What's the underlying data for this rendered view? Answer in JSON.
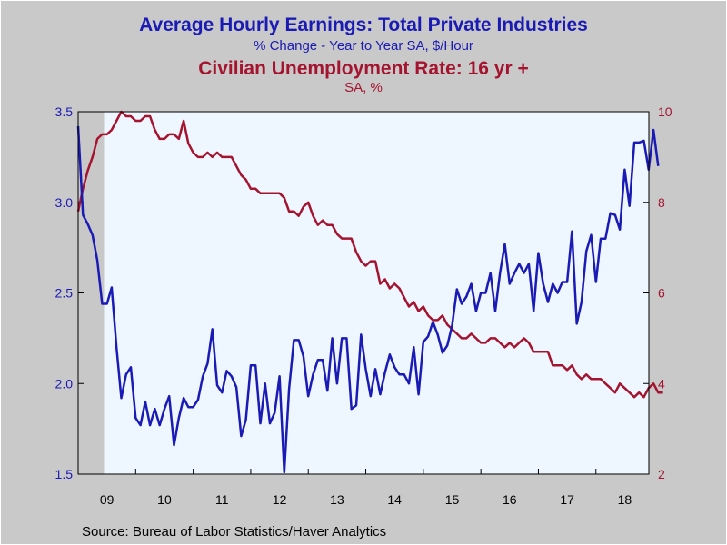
{
  "chart_data": {
    "type": "line",
    "title": "Average Hourly Earnings: Total Private Industries",
    "subtitle": "% Change - Year to Year     SA, $/Hour",
    "title2": "Civilian Unemployment Rate: 16 yr +",
    "subtitle2": "SA, %",
    "source": "Source:  Bureau of Labor Statistics/Haver Analytics",
    "x_tick_labels": [
      "09",
      "10",
      "11",
      "12",
      "13",
      "14",
      "15",
      "16",
      "17",
      "18"
    ],
    "x_range": [
      2009.0,
      2018.92
    ],
    "left_axis": {
      "ylim": [
        1.5,
        3.5
      ],
      "ticks": [
        "1.5",
        "2.0",
        "2.5",
        "3.0",
        "3.5"
      ]
    },
    "right_axis": {
      "ylim": [
        2,
        10
      ],
      "ticks": [
        "2",
        "4",
        "6",
        "8",
        "10"
      ]
    },
    "recession_shading": [
      2009.0,
      2009.45
    ],
    "colors": {
      "earnings": "#1a1ab4",
      "unemployment": "#a5142f",
      "plot_bg": "#eef6ff",
      "recession": "#c8c8c8"
    },
    "series": [
      {
        "axis": "left",
        "x_start": 2009.0,
        "step": 0.083333,
        "values": [
          3.42,
          2.93,
          2.88,
          2.82,
          2.68,
          2.44,
          2.44,
          2.53,
          2.2,
          1.92,
          2.05,
          2.09,
          1.81,
          1.77,
          1.9,
          1.77,
          1.86,
          1.77,
          1.86,
          1.93,
          1.66,
          1.81,
          1.92,
          1.87,
          1.87,
          1.91,
          2.04,
          2.11,
          2.3,
          1.99,
          1.95,
          2.07,
          2.04,
          1.98,
          1.71,
          1.8,
          2.1,
          2.1,
          1.78,
          2.0,
          1.78,
          1.84,
          2.04,
          1.51,
          1.97,
          2.24,
          2.24,
          2.15,
          1.93,
          2.05,
          2.13,
          2.13,
          1.96,
          2.25,
          2.0,
          2.25,
          2.25,
          1.86,
          1.88,
          2.27,
          2.08,
          1.93,
          2.08,
          1.94,
          2.06,
          2.16,
          2.09,
          2.05,
          2.05,
          2.0,
          2.2,
          1.94,
          2.23,
          2.26,
          2.34,
          2.27,
          2.17,
          2.21,
          2.32,
          2.52,
          2.44,
          2.48,
          2.55,
          2.4,
          2.5,
          2.5,
          2.61,
          2.4,
          2.61,
          2.77,
          2.55,
          2.61,
          2.66,
          2.61,
          2.66,
          2.4,
          2.72,
          2.55,
          2.45,
          2.55,
          2.5,
          2.56,
          2.56,
          2.84,
          2.33,
          2.45,
          2.73,
          2.82,
          2.56,
          2.8,
          2.8,
          2.94,
          2.93,
          2.85,
          3.18,
          2.98,
          3.33,
          3.33,
          3.34,
          3.18,
          3.4,
          3.2
        ]
      },
      {
        "axis": "right",
        "x_start": 2009.0,
        "step": 0.083333,
        "values": [
          7.8,
          8.3,
          8.7,
          9.0,
          9.4,
          9.5,
          9.5,
          9.6,
          9.8,
          10.0,
          9.9,
          9.9,
          9.8,
          9.8,
          9.9,
          9.9,
          9.6,
          9.4,
          9.4,
          9.5,
          9.5,
          9.4,
          9.8,
          9.3,
          9.1,
          9.0,
          9.0,
          9.1,
          9.0,
          9.1,
          9.0,
          9.0,
          9.0,
          8.8,
          8.6,
          8.5,
          8.3,
          8.3,
          8.2,
          8.2,
          8.2,
          8.2,
          8.2,
          8.1,
          7.8,
          7.8,
          7.7,
          7.9,
          8.0,
          7.7,
          7.5,
          7.6,
          7.5,
          7.5,
          7.3,
          7.2,
          7.2,
          7.2,
          6.9,
          6.7,
          6.6,
          6.7,
          6.7,
          6.2,
          6.3,
          6.1,
          6.2,
          6.1,
          5.9,
          5.7,
          5.8,
          5.6,
          5.7,
          5.5,
          5.4,
          5.4,
          5.5,
          5.3,
          5.2,
          5.1,
          5.0,
          5.0,
          5.1,
          5.0,
          4.9,
          4.9,
          5.0,
          5.0,
          4.9,
          4.8,
          4.9,
          4.8,
          4.9,
          5.0,
          4.9,
          4.7,
          4.7,
          4.7,
          4.7,
          4.4,
          4.4,
          4.4,
          4.3,
          4.4,
          4.2,
          4.1,
          4.2,
          4.1,
          4.1,
          4.1,
          4.0,
          3.9,
          3.8,
          4.0,
          3.9,
          3.8,
          3.7,
          3.8,
          3.7,
          3.9,
          4.0,
          3.8,
          3.8
        ]
      }
    ]
  }
}
